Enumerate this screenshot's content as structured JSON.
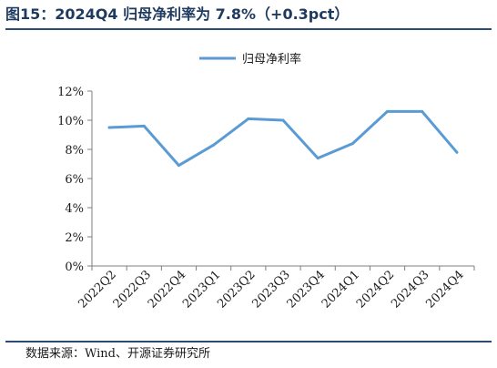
{
  "title": "图15：2024Q4 归母净利率为 7.8%（+0.3pct）",
  "source": "数据来源：Wind、开源证券研究所",
  "colors": {
    "line": "#5B9BD5",
    "axis": "#7f7f7f",
    "title": "#1f3a5f",
    "rule": "#2b4a76"
  },
  "chart_data": {
    "type": "line",
    "categories": [
      "2022Q2",
      "2022Q3",
      "2022Q4",
      "2023Q1",
      "2023Q2",
      "2023Q3",
      "2023Q4",
      "2024Q1",
      "2024Q2",
      "2024Q3",
      "2024Q4"
    ],
    "series": [
      {
        "name": "归母净利率",
        "values": [
          9.5,
          9.6,
          6.9,
          8.3,
          10.1,
          10.0,
          7.4,
          8.4,
          10.6,
          10.6,
          7.8
        ]
      }
    ],
    "yticks": [
      "0%",
      "2%",
      "4%",
      "6%",
      "8%",
      "10%",
      "12%"
    ],
    "ylim": [
      0,
      12
    ],
    "legend_position": "top-center",
    "grid": false
  }
}
